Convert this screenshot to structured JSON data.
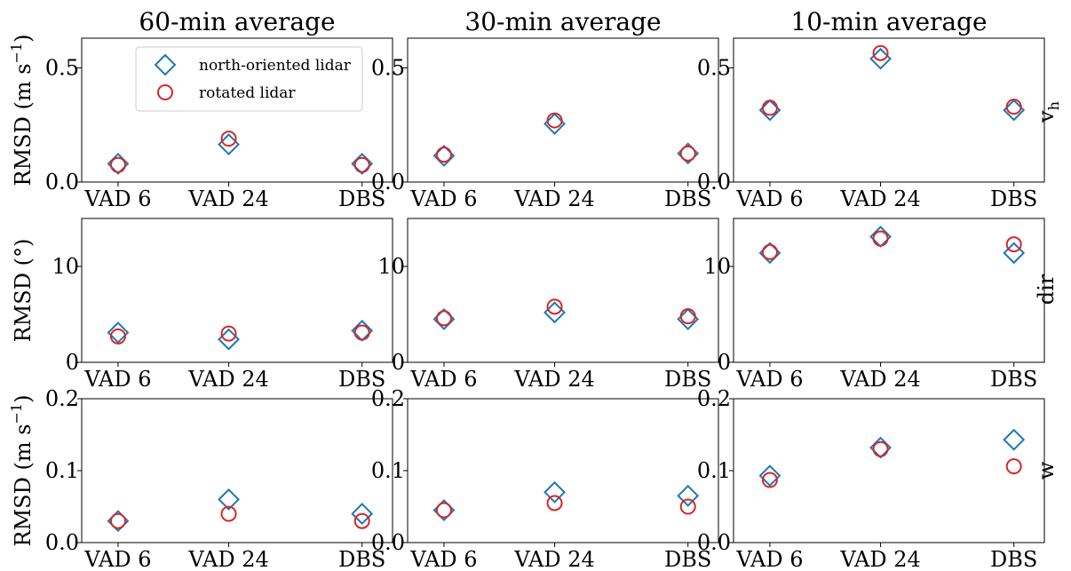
{
  "colors": {
    "north": "#1f77b4",
    "rotated": "#d62728"
  },
  "legend": {
    "placement": "top-right",
    "entries": [
      {
        "marker": "diamond",
        "label": "north-oriented lidar"
      },
      {
        "marker": "circle",
        "label": "rotated lidar"
      }
    ]
  },
  "columns": [
    "60-min average",
    "30-min average",
    "10-min average"
  ],
  "rows": [
    {
      "variable": "v_h",
      "label": "v",
      "label_sub": "h",
      "ylabel": "RMSD (m s",
      "ylabel_sup": "−1",
      "ylabel_tail": ")"
    },
    {
      "variable": "dir",
      "label": "dir",
      "ylabel": "RMSD (°)"
    },
    {
      "variable": "w",
      "label": "w",
      "ylabel": "RMSD (m s",
      "ylabel_sup": "−1",
      "ylabel_tail": ")"
    }
  ],
  "chart_data": {
    "type": "scatter",
    "grid": false,
    "categories": [
      "VAD 6",
      "VAD 24",
      "DBS"
    ],
    "panels": [
      {
        "row": 0,
        "col": 0,
        "ylim": [
          0,
          0.63
        ],
        "yticks": [
          0.0,
          0.5
        ],
        "ytick_labels": [
          "0.0",
          "0.5"
        ],
        "series": [
          {
            "name": "north-oriented lidar",
            "values": [
              0.08,
              0.165,
              0.08
            ]
          },
          {
            "name": "rotated lidar",
            "values": [
              0.075,
              0.19,
              0.075
            ]
          }
        ]
      },
      {
        "row": 0,
        "col": 1,
        "ylim": [
          0,
          0.63
        ],
        "yticks": [
          0.0,
          0.5
        ],
        "ytick_labels": [
          "0.0",
          "0.5"
        ],
        "series": [
          {
            "name": "north-oriented lidar",
            "values": [
              0.115,
              0.255,
              0.125
            ]
          },
          {
            "name": "rotated lidar",
            "values": [
              0.12,
              0.27,
              0.125
            ]
          }
        ]
      },
      {
        "row": 0,
        "col": 2,
        "ylim": [
          0,
          0.63
        ],
        "yticks": [
          0.0,
          0.5
        ],
        "ytick_labels": [
          "0.0",
          "0.5"
        ],
        "series": [
          {
            "name": "north-oriented lidar",
            "values": [
              0.315,
              0.54,
              0.315
            ]
          },
          {
            "name": "rotated lidar",
            "values": [
              0.325,
              0.565,
              0.33
            ]
          }
        ]
      },
      {
        "row": 1,
        "col": 0,
        "ylim": [
          0,
          15
        ],
        "yticks": [
          0,
          10
        ],
        "ytick_labels": [
          "0",
          "10"
        ],
        "series": [
          {
            "name": "north-oriented lidar",
            "values": [
              3.1,
              2.4,
              3.3
            ]
          },
          {
            "name": "rotated lidar",
            "values": [
              2.7,
              3.0,
              3.1
            ]
          }
        ]
      },
      {
        "row": 1,
        "col": 1,
        "ylim": [
          0,
          15
        ],
        "yticks": [
          0,
          10
        ],
        "ytick_labels": [
          "0",
          "10"
        ],
        "series": [
          {
            "name": "north-oriented lidar",
            "values": [
              4.5,
              5.2,
              4.5
            ]
          },
          {
            "name": "rotated lidar",
            "values": [
              4.6,
              5.8,
              4.8
            ]
          }
        ]
      },
      {
        "row": 1,
        "col": 2,
        "ylim": [
          0,
          15
        ],
        "yticks": [
          0,
          10
        ],
        "ytick_labels": [
          "0",
          "10"
        ],
        "series": [
          {
            "name": "north-oriented lidar",
            "values": [
              11.4,
              13.1,
              11.4
            ]
          },
          {
            "name": "rotated lidar",
            "values": [
              11.5,
              12.9,
              12.3
            ]
          }
        ]
      },
      {
        "row": 2,
        "col": 0,
        "ylim": [
          0,
          0.2
        ],
        "yticks": [
          0.0,
          0.1,
          0.2
        ],
        "ytick_labels": [
          "0.0",
          "0.1",
          "0.2"
        ],
        "series": [
          {
            "name": "north-oriented lidar",
            "values": [
              0.03,
              0.06,
              0.04
            ]
          },
          {
            "name": "rotated lidar",
            "values": [
              0.03,
              0.04,
              0.03
            ]
          }
        ]
      },
      {
        "row": 2,
        "col": 1,
        "ylim": [
          0,
          0.2
        ],
        "yticks": [
          0.0,
          0.1,
          0.2
        ],
        "ytick_labels": [
          "0.0",
          "0.1",
          "0.2"
        ],
        "series": [
          {
            "name": "north-oriented lidar",
            "values": [
              0.045,
              0.07,
              0.065
            ]
          },
          {
            "name": "rotated lidar",
            "values": [
              0.045,
              0.055,
              0.05
            ]
          }
        ]
      },
      {
        "row": 2,
        "col": 2,
        "ylim": [
          0,
          0.2
        ],
        "yticks": [
          0.0,
          0.1,
          0.2
        ],
        "ytick_labels": [
          "0.0",
          "0.1",
          "0.2"
        ],
        "series": [
          {
            "name": "north-oriented lidar",
            "values": [
              0.093,
              0.132,
              0.143
            ]
          },
          {
            "name": "rotated lidar",
            "values": [
              0.087,
              0.13,
              0.106
            ]
          }
        ]
      }
    ]
  }
}
